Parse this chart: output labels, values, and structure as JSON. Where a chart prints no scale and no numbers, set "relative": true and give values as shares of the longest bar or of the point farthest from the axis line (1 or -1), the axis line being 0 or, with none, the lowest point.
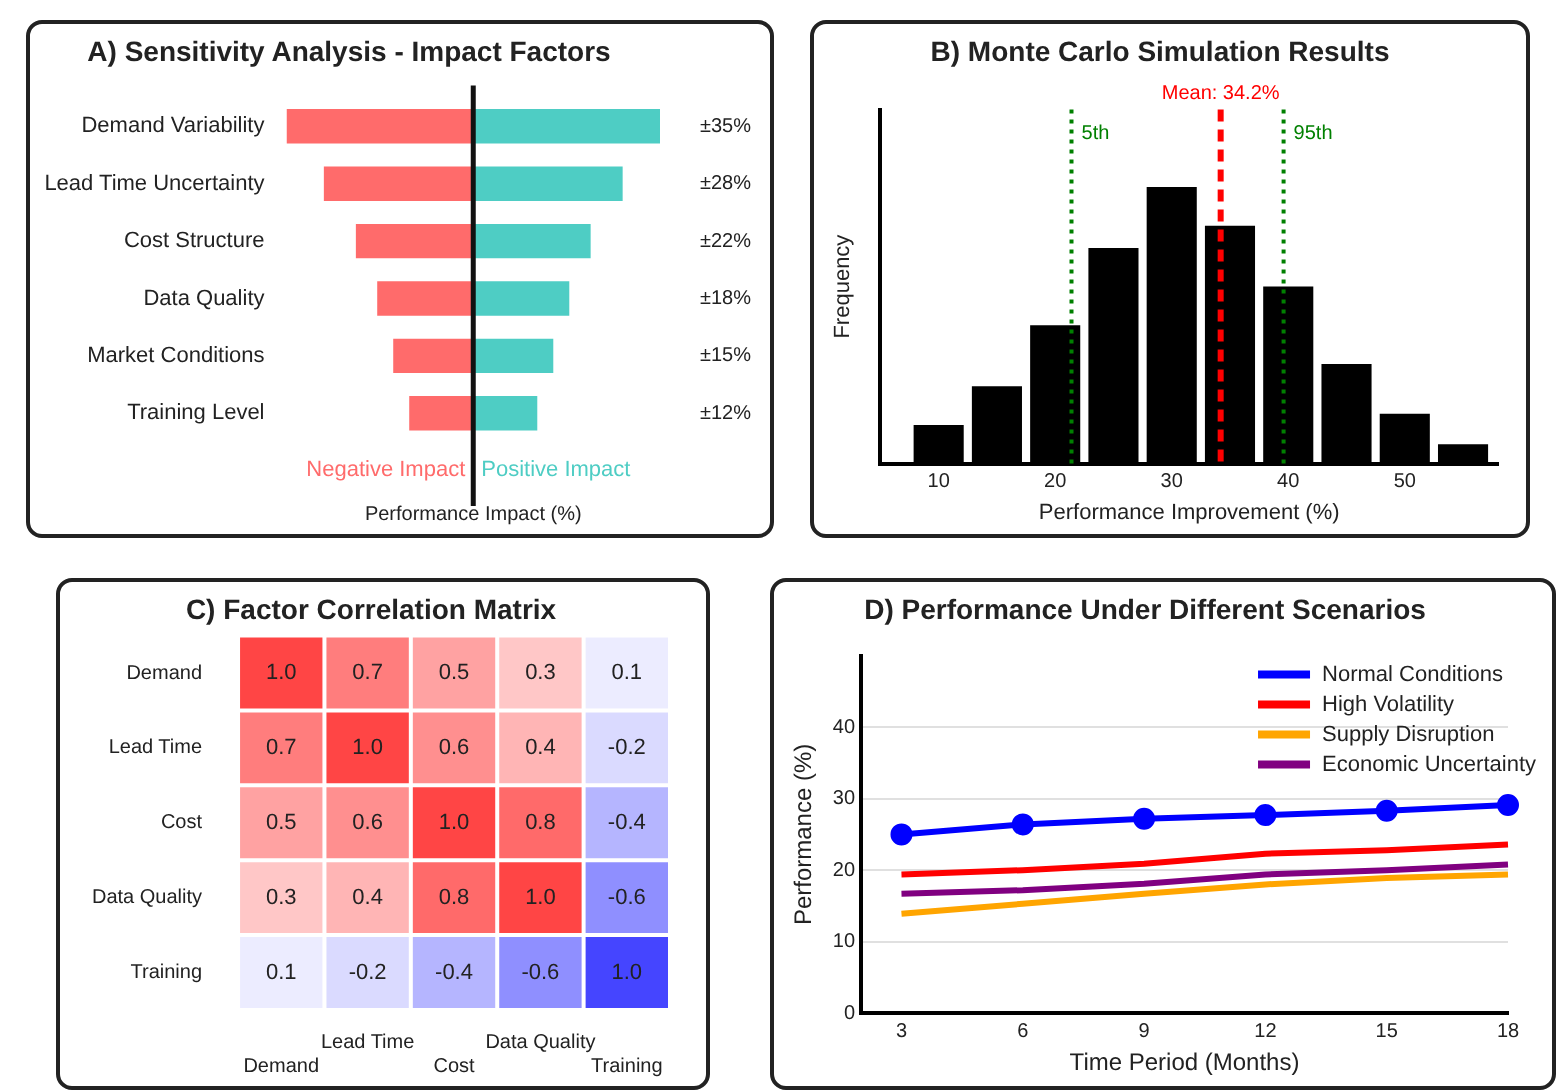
{
  "chart_data": [
    {
      "type": "bar",
      "title": "A) Sensitivity Analysis - Impact Factors",
      "xlabel": "Performance Impact (%)",
      "orientation": "horizontal",
      "stacked": true,
      "tick_labels": "y",
      "categories": [
        "Demand Variability",
        "Lead Time Uncertainty",
        "Cost Structure",
        "Data Quality",
        "Market Conditions",
        "Training Level"
      ],
      "series": [
        {
          "name": "Negative Impact",
          "color": "#ff6b6b",
          "values": [
            -35,
            -28,
            -22,
            -18,
            -15,
            -12
          ]
        },
        {
          "name": "Positive Impact",
          "color": "#4ecdc4",
          "values": [
            35,
            28,
            22,
            18,
            15,
            12
          ],
          "value_labels": [
            "±35%",
            "±28%",
            "±22%",
            "±18%",
            "±15%",
            "±12%"
          ]
        }
      ]
    },
    {
      "type": "bar",
      "title": "B) Monte Carlo Simulation Results",
      "xlabel": "Performance Improvement (%)",
      "ylabel": "Frequency",
      "relative": true,
      "color": "#000000",
      "x": [
        10,
        15,
        20,
        25,
        30,
        35,
        40,
        45,
        50,
        55
      ],
      "values": [
        0.14,
        0.28,
        0.5,
        0.78,
        1,
        0.86,
        0.64,
        0.36,
        0.18,
        0.07
      ],
      "xlim": [
        5,
        58
      ],
      "xticks": [
        10,
        20,
        30,
        40,
        50
      ],
      "ref_lines": [
        {
          "axis": "x",
          "value": 21.4,
          "label": "5th",
          "color": "#008000",
          "line_style": "dotted"
        },
        {
          "axis": "x",
          "value": 34.2,
          "label": "Mean: 34.2%",
          "color": "#ff0000",
          "line_style": "dashed"
        },
        {
          "axis": "x",
          "value": 39.6,
          "label": "95th",
          "color": "#008000",
          "line_style": "dotted"
        }
      ]
    },
    {
      "type": "heatmap",
      "title": "C) Factor Correlation Matrix",
      "categories": [
        "Demand",
        "Lead Time",
        "Cost",
        "Data Quality",
        "Training"
      ],
      "y_categories": [
        "Demand",
        "Lead Time",
        "Cost",
        "Data Quality",
        "Training"
      ],
      "cells": [
        [
          1.0,
          0.7,
          0.5,
          0.3,
          0.1
        ],
        [
          0.7,
          1.0,
          0.6,
          0.4,
          -0.2
        ],
        [
          0.5,
          0.6,
          1.0,
          0.8,
          -0.4
        ],
        [
          0.3,
          0.4,
          0.8,
          1.0,
          -0.6
        ],
        [
          0.1,
          -0.2,
          -0.4,
          -0.6,
          1.0
        ]
      ],
      "cell_labels": [
        [
          "1.0",
          "0.7",
          "0.5",
          "0.3",
          "0.1"
        ],
        [
          "0.7",
          "1.0",
          "0.6",
          "0.4",
          "-0.2"
        ],
        [
          "0.5",
          "0.6",
          "1.0",
          "0.8",
          "-0.4"
        ],
        [
          "0.3",
          "0.4",
          "0.8",
          "1.0",
          "-0.6"
        ],
        [
          "0.1",
          "-0.2",
          "-0.4",
          "-0.6",
          "1.0"
        ]
      ],
      "colors": [
        [
          "#ff0000",
          "#ff0000",
          "#ff0000",
          "#ff0000",
          "#0000ff"
        ],
        [
          "#ff0000",
          "#ff0000",
          "#ff0000",
          "#ff0000",
          "#0000ff"
        ],
        [
          "#ff0000",
          "#ff0000",
          "#ff0000",
          "#ff0000",
          "#0000ff"
        ],
        [
          "#ff0000",
          "#ff0000",
          "#ff0000",
          "#ff0000",
          "#0000ff"
        ],
        [
          "#0000ff",
          "#0000ff",
          "#0000ff",
          "#0000ff",
          "#0000ff"
        ]
      ]
    },
    {
      "type": "line",
      "title": "D) Performance Under Different Scenarios",
      "xlabel": "Time Period (Months)",
      "ylabel": "Performance (%)",
      "x": [
        3,
        6,
        9,
        12,
        15,
        18
      ],
      "xlim": [
        2,
        18
      ],
      "xticks": [
        3,
        6,
        9,
        12,
        15,
        18
      ],
      "ylim": [
        0,
        50
      ],
      "yticks": [
        0,
        10,
        20,
        30,
        40
      ],
      "grid": "y",
      "legend": "top right",
      "series": [
        {
          "name": "Normal Conditions",
          "color": "#0000ff",
          "marker": "circle",
          "values": [
            25,
            26.4,
            27.2,
            27.7,
            28.3,
            29.1
          ]
        },
        {
          "name": "High Volatility",
          "color": "#ff0000",
          "values": [
            19.4,
            20,
            20.9,
            22.3,
            22.8,
            23.6
          ]
        },
        {
          "name": "Supply Disruption",
          "color": "#ffa500",
          "values": [
            13.9,
            15.3,
            16.7,
            18,
            18.9,
            19.4
          ]
        },
        {
          "name": "Economic Uncertainty",
          "color": "#800080",
          "values": [
            16.7,
            17.2,
            18.1,
            19.4,
            20,
            20.8
          ]
        }
      ]
    }
  ]
}
